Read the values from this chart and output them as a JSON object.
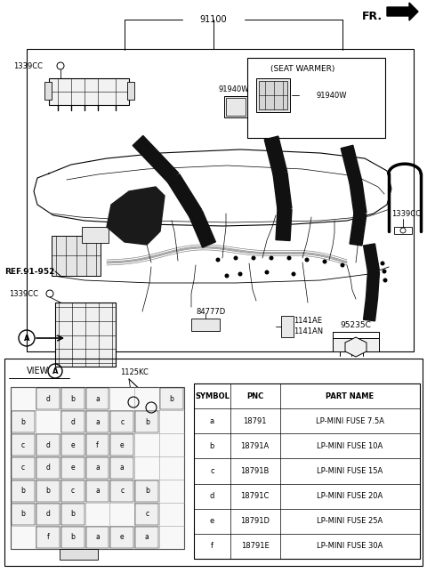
{
  "bg_color": "#ffffff",
  "figsize": [
    4.8,
    6.44
  ],
  "dpi": 100,
  "table_data": {
    "headers": [
      "SYMBOL",
      "PNC",
      "PART NAME"
    ],
    "rows": [
      [
        "a",
        "18791",
        "LP-MINI FUSE 7.5A"
      ],
      [
        "b",
        "18791A",
        "LP-MINI FUSE 10A"
      ],
      [
        "c",
        "18791B",
        "LP-MINI FUSE 15A"
      ],
      [
        "d",
        "18791C",
        "LP-MINI FUSE 20A"
      ],
      [
        "e",
        "18791D",
        "LP-MINI FUSE 25A"
      ],
      [
        "f",
        "18791E",
        "LP-MINI FUSE 30A"
      ]
    ]
  },
  "fuse_grid": [
    [
      "",
      "d",
      "b",
      "a",
      "",
      "",
      "b"
    ],
    [
      "b",
      "",
      "d",
      "a",
      "c",
      "b",
      ""
    ],
    [
      "c",
      "d",
      "e",
      "f",
      "e",
      "",
      ""
    ],
    [
      "c",
      "d",
      "e",
      "a",
      "a",
      "",
      ""
    ],
    [
      "b",
      "b",
      "c",
      "a",
      "c",
      "b",
      ""
    ],
    [
      "b",
      "d",
      "b",
      "",
      "",
      "c",
      ""
    ],
    [
      "",
      "f",
      "b",
      "a",
      "e",
      "a",
      ""
    ]
  ],
  "labels": {
    "fr": "FR.",
    "part_91100": "91100",
    "p1339cc_tl": "1339CC",
    "p91940w_l": "91940W",
    "seat_warmer": "(SEAT WARMER)",
    "p91940w_r": "91940W",
    "p1339cc_r": "1339CC",
    "ref_91_952": "REF.91-952",
    "p1339cc_ml": "1339CC",
    "p84777d": "84777D",
    "p1125kc": "1125KC",
    "p1141ae": "1141AE",
    "p1141an": "1141AN",
    "p95235c": "95235C",
    "view_a": "VIEW"
  }
}
